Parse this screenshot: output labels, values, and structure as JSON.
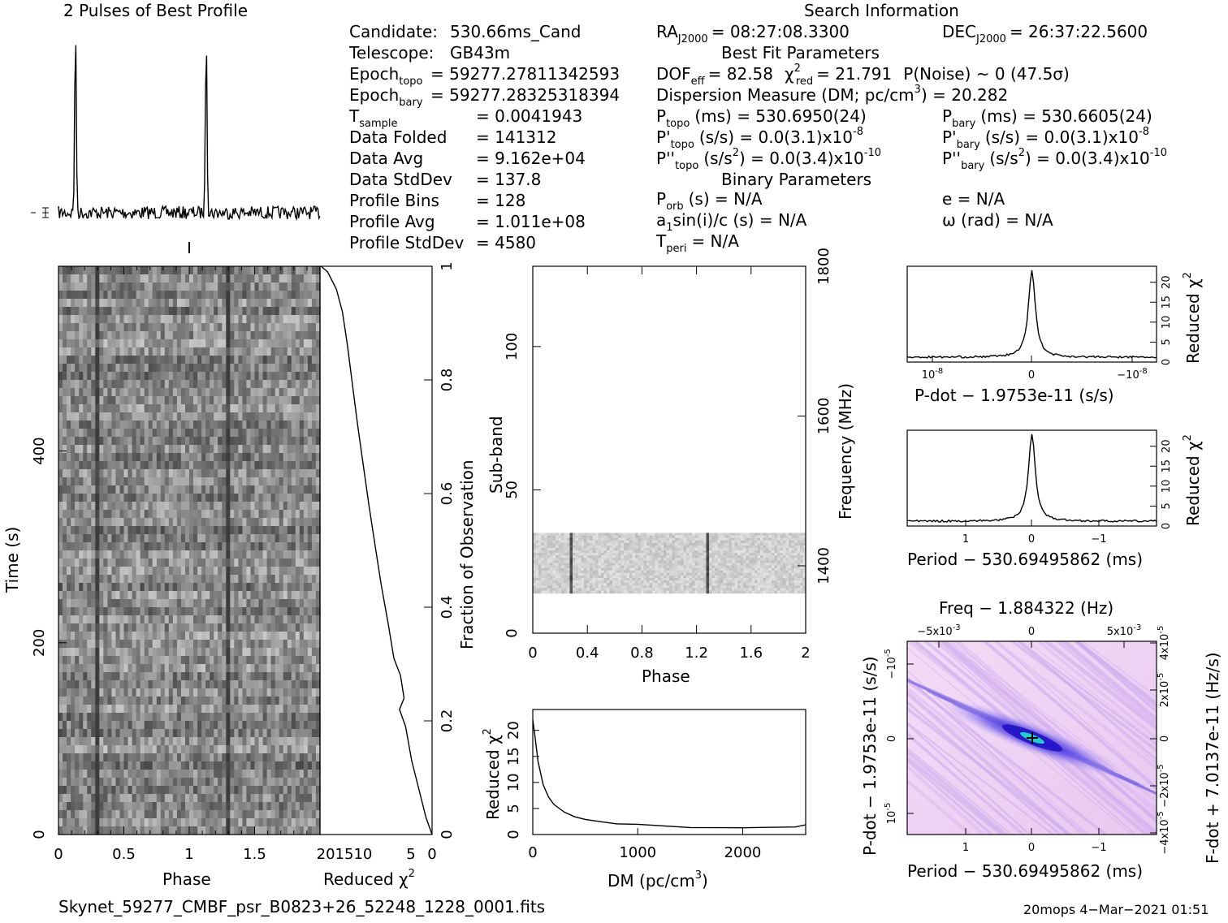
{
  "header": {
    "profile_title": "2 Pulses of Best Profile",
    "search_title": "Search Information",
    "best_fit_title": "Best Fit Parameters",
    "binary_title": "Binary Parameters"
  },
  "info_left": [
    {
      "key": "Candidate:",
      "val": "530.66ms_Cand",
      "sub": ""
    },
    {
      "key": "Telescope:",
      "val": "GB43m",
      "sub": ""
    },
    {
      "key": "Epoch",
      "sub": "topo",
      "val": "= 59277.27811342593"
    },
    {
      "key": "Epoch",
      "sub": "bary",
      "val": "= 59277.28325318394"
    },
    {
      "key": "T",
      "sub": "sample",
      "val": "=   0.0041943"
    },
    {
      "key": "Data Folded",
      "sub": "",
      "val": "=   141312"
    },
    {
      "key": "Data Avg",
      "sub": "",
      "val": "=   9.162e+04"
    },
    {
      "key": "Data StdDev",
      "sub": "",
      "val": "=   137.8"
    },
    {
      "key": "Profile Bins",
      "sub": "",
      "val": "=   128"
    },
    {
      "key": "Profile Avg",
      "sub": "",
      "val": "=   1.011e+08"
    },
    {
      "key": "Profile StdDev",
      "sub": "",
      "val": "=   4580"
    }
  ],
  "info_mid": {
    "ra_label": "RA",
    "ra_sub": "J2000",
    "ra_val": "= 08:27:08.3300",
    "dec_label": "DEC",
    "dec_sub": "J2000",
    "dec_val": "= 26:37:22.5600",
    "dof": "DOF",
    "dof_sub": "eff",
    "dof_val": "= 82.58",
    "chi": "χ",
    "chi_sup": "2",
    "chi_sub": "red",
    "chi_val": "= 21.791",
    "pnoise": "P(Noise) ~ 0    (47.5σ)",
    "dm_line": "Dispersion Measure (DM; pc/cm",
    "dm_sup": "3",
    "dm_val": ") = 20.282",
    "ptopo": "P",
    "ptopo_sub": "topo",
    "ptopo_val": "(ms) =  530.6950(24)",
    "pbary": "P",
    "pbary_sub": "bary",
    "pbary_val": "(ms) =  530.6605(24)",
    "pdtopo": "P'",
    "pdtopo_sub": "topo",
    "pdtopo_val": "(s/s) = 0.0(3.1)x10",
    "pdtopo_exp": "-8",
    "pdbary": "P'",
    "pdbary_sub": "bary",
    "pdbary_val": "(s/s) = 0.0(3.1)x10",
    "pdbary_exp": "-8",
    "pddtopo": "P''",
    "pddtopo_sub": "topo",
    "pddtopo_val": "(s/s",
    "pddtopo_sq": "2",
    "pddtopo_val2": ") = 0.0(3.4)x10",
    "pddtopo_exp": "-10",
    "pddbary": "P''",
    "pddbary_sub": "bary",
    "pddbary_val": "(s/s",
    "pddbary_sq": "2",
    "pddbary_val2": ") = 0.0(3.4)x10",
    "pddbary_exp": "-10",
    "porb": "P",
    "porb_sub": "orb",
    "porb_val": "(s) = N/A",
    "ecc": "e = N/A",
    "a1": "a",
    "a1_sub": "1",
    "a1_val": "sin(i)/c (s) = N/A",
    "omega": "ω (rad) = N/A",
    "tperi": "T",
    "tperi_sub": "peri",
    "tperi_val": "= N/A"
  },
  "chart_data": [
    {
      "type": "line",
      "name": "profile",
      "title": "2 Pulses of Best Profile",
      "x_range": [
        0,
        2
      ],
      "peaks": [
        0.13,
        1.13
      ]
    },
    {
      "type": "heatmap",
      "name": "time-phase",
      "xlabel": "Phase",
      "ylabel": "Time (s)",
      "xticks": [
        "0",
        "0.5",
        "1",
        "1.5"
      ],
      "xtick_values": [
        0,
        0.5,
        1,
        1.5
      ],
      "yticks": [
        "0",
        "200",
        "400"
      ],
      "ytick_values": [
        0,
        200,
        400
      ],
      "xlim": [
        0,
        2
      ],
      "ylim": [
        0,
        592.7
      ],
      "pulse_phase": [
        0.29,
        1.29
      ]
    },
    {
      "type": "line",
      "name": "chi-vs-time",
      "xlabel": "Reduced χ",
      "xlabel_sup": "2",
      "xticks": [
        "201510",
        "5",
        "0"
      ],
      "yticks": [
        "0",
        "0.2",
        "0.4",
        "0.6",
        "0.8",
        "1"
      ],
      "ytick_values": [
        0,
        0.2,
        0.4,
        0.6,
        0.8,
        1
      ],
      "ylabel": "Fraction of Observation",
      "xlim": [
        0,
        22
      ],
      "points": [
        [
          0,
          0.0
        ],
        [
          1.2,
          0.03
        ],
        [
          2.6,
          0.08
        ],
        [
          4.0,
          0.13
        ],
        [
          5.2,
          0.19
        ],
        [
          6.4,
          0.22
        ],
        [
          5.5,
          0.24
        ],
        [
          6.2,
          0.28
        ],
        [
          7.5,
          0.31
        ],
        [
          8.6,
          0.37
        ],
        [
          10,
          0.44
        ],
        [
          11.2,
          0.51
        ],
        [
          12.4,
          0.58
        ],
        [
          13.5,
          0.65
        ],
        [
          14.6,
          0.72
        ],
        [
          15.6,
          0.79
        ],
        [
          16.6,
          0.86
        ],
        [
          17.6,
          0.92
        ],
        [
          18.8,
          0.96
        ],
        [
          20.5,
          0.99
        ],
        [
          21.8,
          1.0
        ]
      ]
    },
    {
      "type": "heatmap",
      "name": "subband-phase",
      "xlabel": "Phase",
      "ylabel": "Sub-band",
      "y2label": "Frequency (MHz)",
      "xticks": [
        "0",
        "0.4",
        "0.8",
        "1.2",
        "1.6",
        "2"
      ],
      "xtick_values": [
        0,
        0.4,
        0.8,
        1.2,
        1.6,
        2
      ],
      "yticks": [
        "0",
        "50",
        "100"
      ],
      "ytick_values": [
        0,
        50,
        100
      ],
      "y2ticks": [
        "1400",
        "1600",
        "1800"
      ],
      "y2tick_values": [
        1400,
        1600,
        1800
      ],
      "xlim": [
        0,
        2
      ],
      "ylim": [
        0,
        128
      ],
      "y2lim": [
        1310,
        1800
      ],
      "band": [
        14,
        35
      ],
      "pulse_phase": [
        0.28,
        1.28
      ]
    },
    {
      "type": "line",
      "name": "dm-curve",
      "xlabel": "DM (pc/cm",
      "xlabel_sup": "3",
      "ylabel": "Reduced χ",
      "ylabel_sup": "2",
      "xticks": [
        "0",
        "1000",
        "2000"
      ],
      "xtick_values": [
        0,
        1000,
        2000
      ],
      "yticks": [
        "0",
        "5",
        "10",
        "15",
        "20"
      ],
      "ytick_values": [
        0,
        5,
        10,
        15,
        20
      ],
      "xlim": [
        0,
        2600
      ],
      "ylim": [
        0,
        24
      ],
      "points": [
        [
          0,
          22
        ],
        [
          20,
          19
        ],
        [
          50,
          14
        ],
        [
          100,
          9.5
        ],
        [
          150,
          7.2
        ],
        [
          200,
          5.8
        ],
        [
          300,
          4.3
        ],
        [
          400,
          3.4
        ],
        [
          500,
          2.9
        ],
        [
          600,
          2.4
        ],
        [
          800,
          2.0
        ],
        [
          1000,
          1.8
        ],
        [
          1500,
          1.6
        ],
        [
          2000,
          1.5
        ],
        [
          2300,
          1.5
        ],
        [
          2500,
          1.6
        ],
        [
          2600,
          1.6
        ]
      ]
    },
    {
      "type": "line",
      "name": "pdot-curve",
      "xlabel": "P-dot − 1.9753e-11 (s/s)",
      "ylabel": "Reduced χ",
      "ylabel_sup": "2",
      "xticks": [
        "10",
        "0",
        "−10"
      ],
      "xtick_exp": "-8",
      "yticks": [
        "0",
        "5",
        "10",
        "15",
        "20"
      ],
      "ytick_values": [
        0,
        5,
        10,
        15,
        20
      ],
      "ylim": [
        0,
        24
      ],
      "peak": 22
    },
    {
      "type": "line",
      "name": "period-curve",
      "xlabel": "Period − 530.69495862 (ms)",
      "ylabel": "Reduced χ",
      "ylabel_sup": "2",
      "xticks": [
        "1",
        "0",
        "−1"
      ],
      "yticks": [
        "0",
        "5",
        "10",
        "15",
        "20"
      ],
      "ytick_values": [
        0,
        5,
        10,
        15,
        20
      ],
      "ylim": [
        0,
        24
      ],
      "peak": 22
    },
    {
      "type": "heatmap",
      "name": "p-pdot-plane",
      "title": "Freq − 1.884322 (Hz)",
      "xlabel": "Period − 530.69495862 (ms)",
      "ylabel": "P-dot − 1.9753e-11 (s/s)",
      "y2label": "F-dot + 7.0137e-11 (Hz/s)",
      "xticks": [
        "1",
        "0",
        "−1"
      ],
      "x2ticks": [
        "−5x10",
        "0",
        "5x10"
      ],
      "x2tick_exp": "-3",
      "yticks": [
        "−10",
        "0",
        "10"
      ],
      "ytick_exp": "-5",
      "y2ticks": [
        "4x10",
        "2x10",
        "0",
        "−2x10",
        "−4x10"
      ],
      "y2tick_exp": "-5"
    }
  ],
  "footer": {
    "filename": "Skynet_59277_CMBF_psr_B0823+26_52248_1228_0001.fits",
    "stamp": "20mops  4−Mar−2021 01:51"
  }
}
